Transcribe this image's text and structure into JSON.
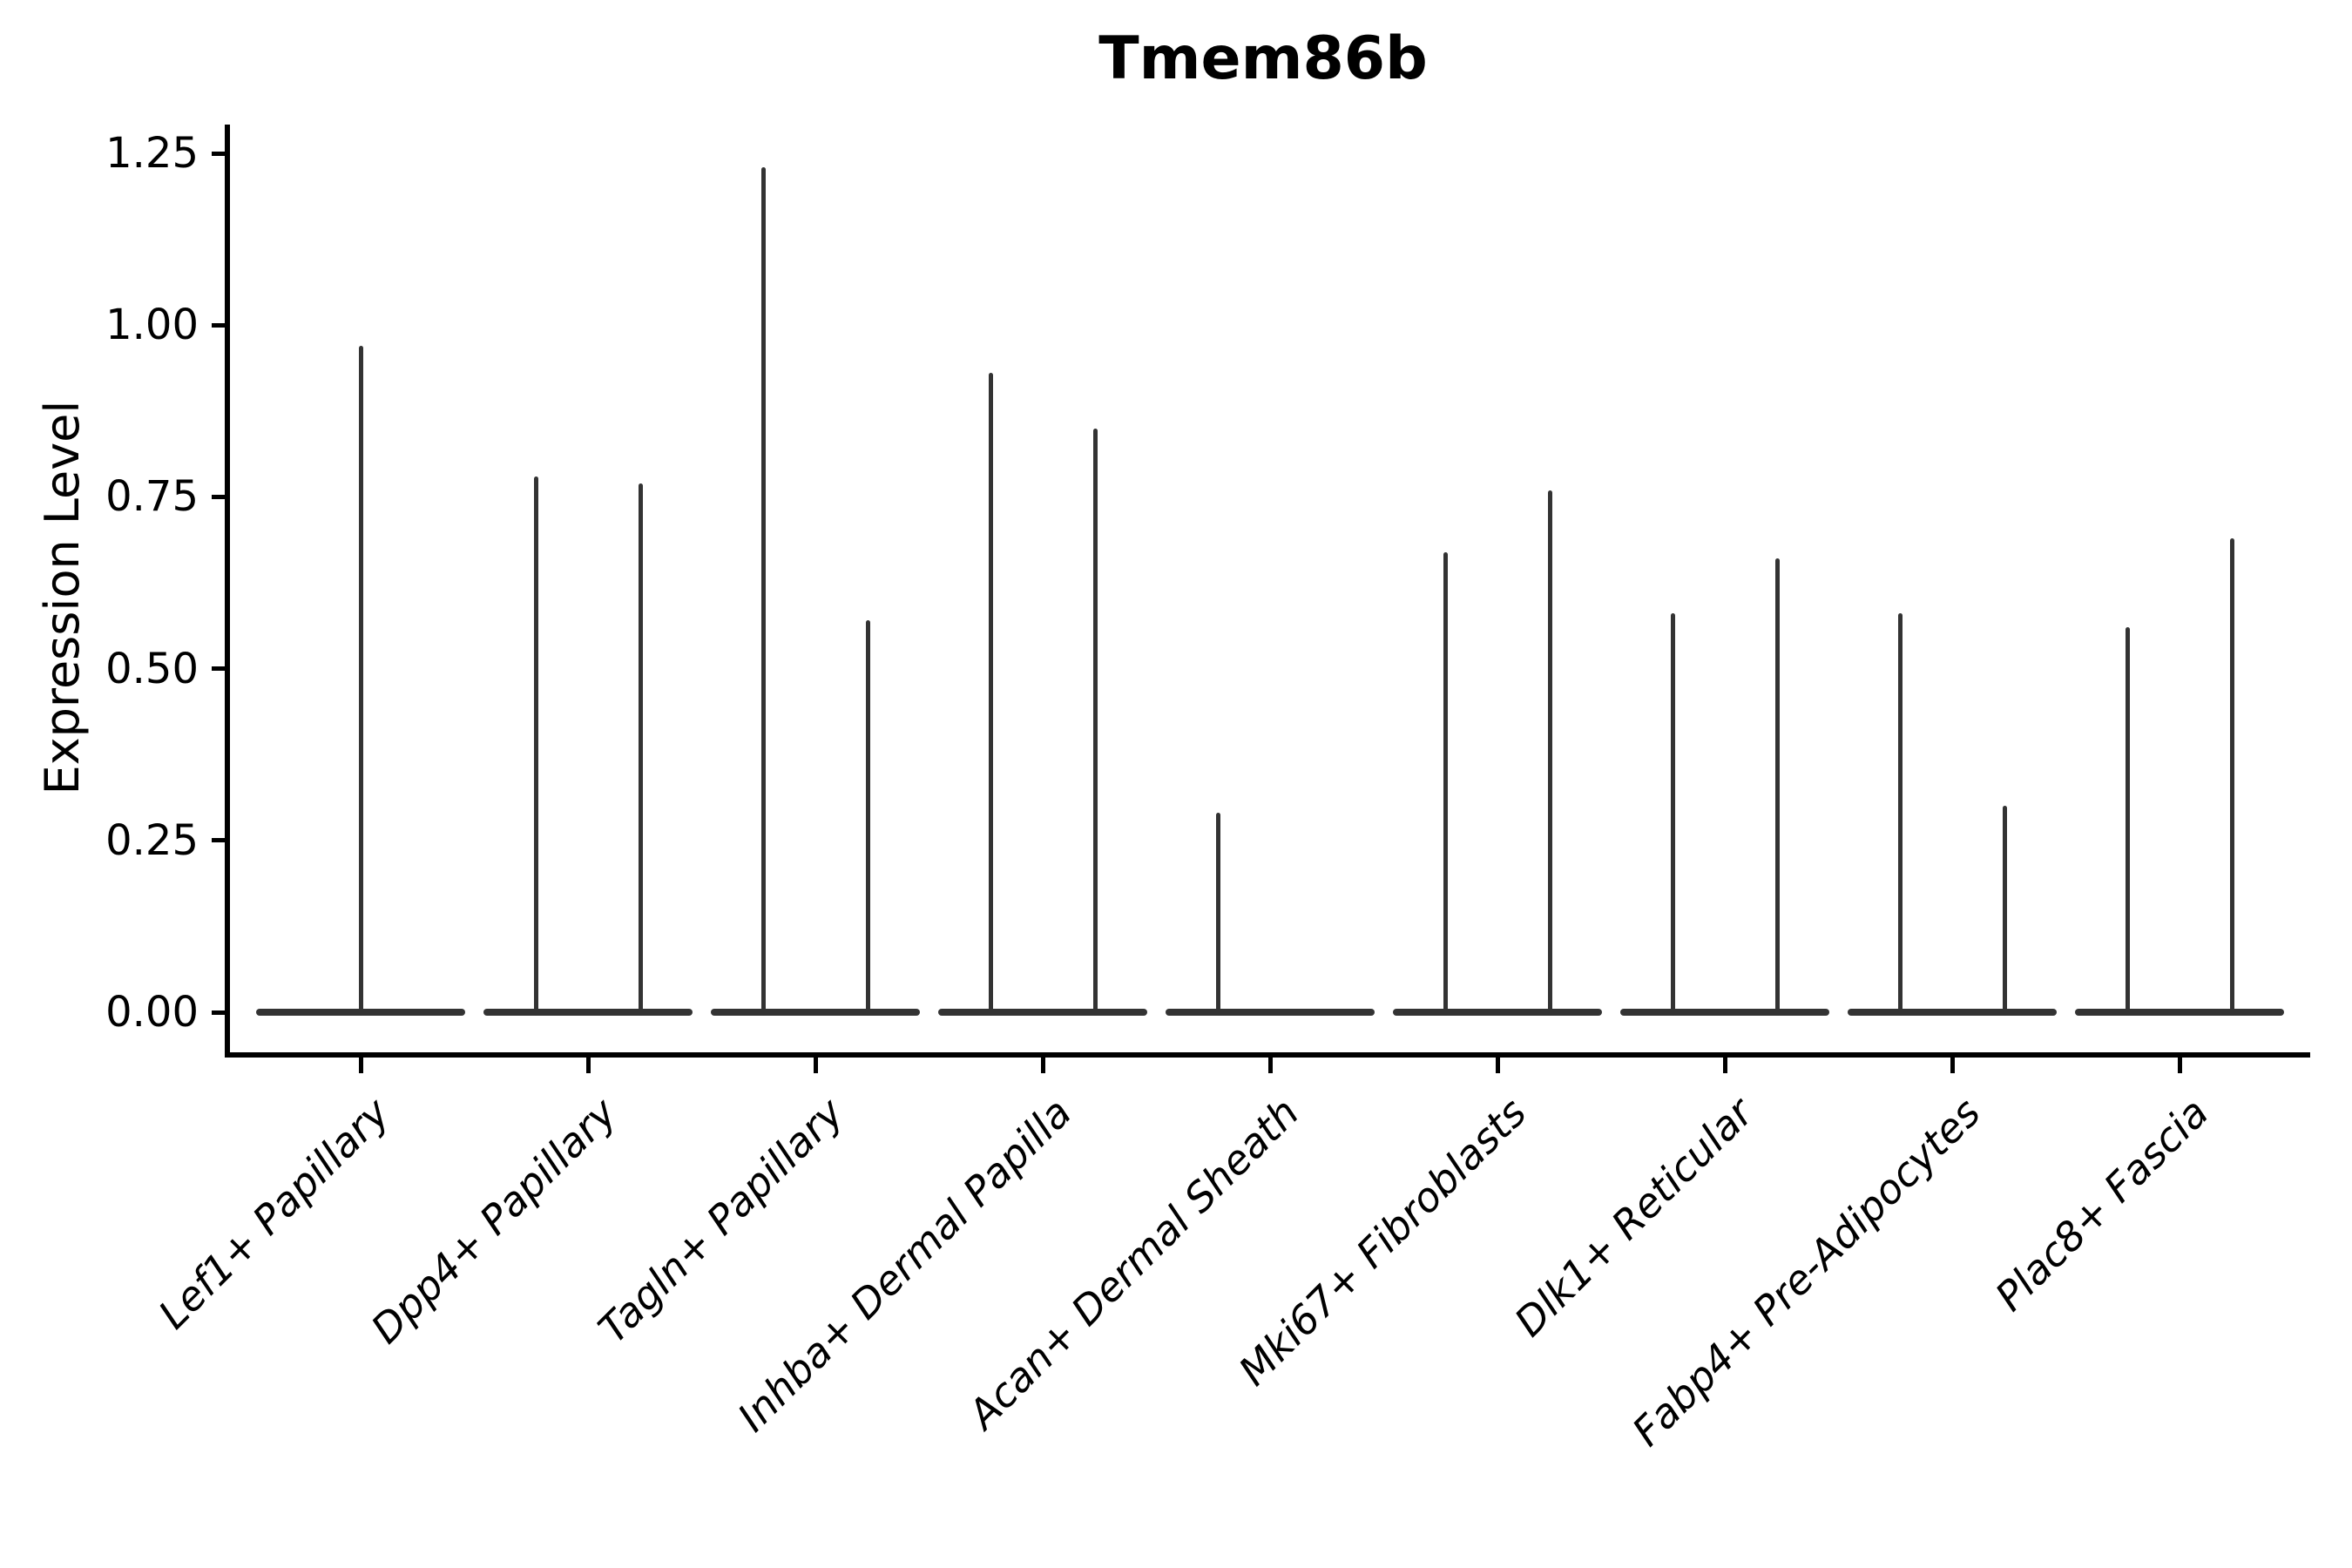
{
  "chart_data": {
    "type": "violin",
    "title": "Tmem86b",
    "ylabel": "Expression Level",
    "xlabel": "",
    "ylim": [
      0,
      1.25
    ],
    "yticks": [
      "0.00",
      "0.25",
      "0.50",
      "0.75",
      "1.00",
      "1.25"
    ],
    "ytick_values": [
      0,
      0.25,
      0.5,
      0.75,
      1.0,
      1.25
    ],
    "grid": false,
    "legend": null,
    "note": "Violin plot of Tmem86b expression per fibroblast cluster; each violin is collapsed flat at 0 (most cells non-expressing) with a thin vertical density spike reaching the maximum expression value. Most categories contain two side-by-side violins; Lef1+ Papillary shows a single wide violin and the right violin of Acan+ Dermal Sheath is entirely flat at 0.",
    "categories": [
      {
        "label": "Lef1+ Papillary",
        "violins": [
          {
            "max": 0.97
          }
        ]
      },
      {
        "label": "Dpp4+ Papillary",
        "violins": [
          {
            "max": 0.78
          },
          {
            "max": 0.77
          }
        ]
      },
      {
        "label": "Tagln+ Papillary",
        "violins": [
          {
            "max": 1.23
          },
          {
            "max": 0.57
          }
        ]
      },
      {
        "label": "Inhba+ Dermal Papilla",
        "violins": [
          {
            "max": 0.93
          },
          {
            "max": 0.85
          }
        ]
      },
      {
        "label": "Acan+ Dermal Sheath",
        "violins": [
          {
            "max": 0.29
          },
          {
            "max": 0
          }
        ]
      },
      {
        "label": "Mki67+ Fibroblasts",
        "violins": [
          {
            "max": 0.67
          },
          {
            "max": 0.76
          }
        ]
      },
      {
        "label": "Dlk1+ Reticular",
        "violins": [
          {
            "max": 0.58
          },
          {
            "max": 0.66
          }
        ]
      },
      {
        "label": "Fabp4+ Pre-Adipocytes",
        "violins": [
          {
            "max": 0.58
          },
          {
            "max": 0.3
          }
        ]
      },
      {
        "label": "Plac8+ Fascia",
        "violins": [
          {
            "max": 0.56
          },
          {
            "max": 0.69
          }
        ]
      }
    ]
  },
  "colors": {
    "violin": "#333333",
    "axis": "#000000",
    "text": "#000000",
    "background": "#ffffff"
  }
}
